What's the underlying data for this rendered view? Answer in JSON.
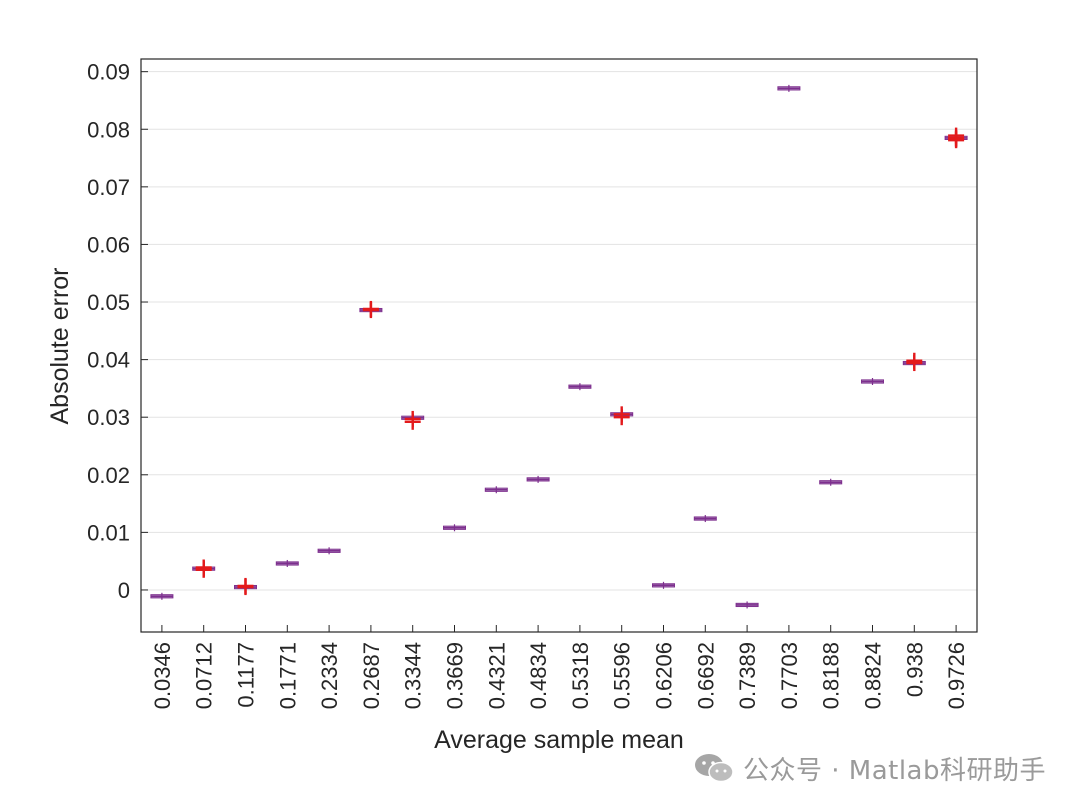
{
  "chart_data": {
    "type": "boxplot",
    "xlabel": "Average sample mean",
    "ylabel": "Absolute error",
    "ylim": [
      -0.0073,
      0.0922
    ],
    "yticks": [
      0,
      0.01,
      0.02,
      0.03,
      0.04,
      0.05,
      0.06,
      0.07,
      0.08,
      0.09
    ],
    "ytick_labels": [
      "0",
      "0.01",
      "0.02",
      "0.03",
      "0.04",
      "0.05",
      "0.06",
      "0.07",
      "0.08",
      "0.09"
    ],
    "grid": "horizontal",
    "categories": [
      "0.0346",
      "0.0712",
      "0.1177",
      "0.1771",
      "0.2334",
      "0.2687",
      "0.3344",
      "0.3669",
      "0.4321",
      "0.4834",
      "0.5318",
      "0.5596",
      "0.6206",
      "0.6692",
      "0.7389",
      "0.7703",
      "0.8188",
      "0.8824",
      "0.938",
      "0.9726"
    ],
    "medians": [
      -0.0011,
      0.0037,
      0.0005,
      0.0046,
      0.0068,
      0.0486,
      0.0299,
      0.0108,
      0.0174,
      0.0192,
      0.0353,
      0.0305,
      0.0008,
      0.0124,
      -0.0026,
      0.0871,
      0.0187,
      0.0362,
      0.0394,
      0.0785
    ],
    "outliers": [
      [],
      [
        0.0037,
        0.0039,
        0.0035
      ],
      [
        0.0005,
        0.0007
      ],
      [],
      [],
      [
        0.0486,
        0.0488
      ],
      [
        0.0297,
        0.0292
      ],
      [],
      [],
      [],
      [],
      [
        0.0305,
        0.03
      ],
      [],
      [],
      [],
      [],
      [],
      [],
      [
        0.0394,
        0.0398
      ],
      [
        0.0785,
        0.0789,
        0.0781,
        0.0783
      ]
    ],
    "box_color": "#7e2f8e",
    "median_color": "#7e2f8e",
    "outlier_color": "#e31a1c"
  },
  "watermark": {
    "text": "公众号 · Matlab科研助手",
    "icon": "wechat-icon"
  }
}
